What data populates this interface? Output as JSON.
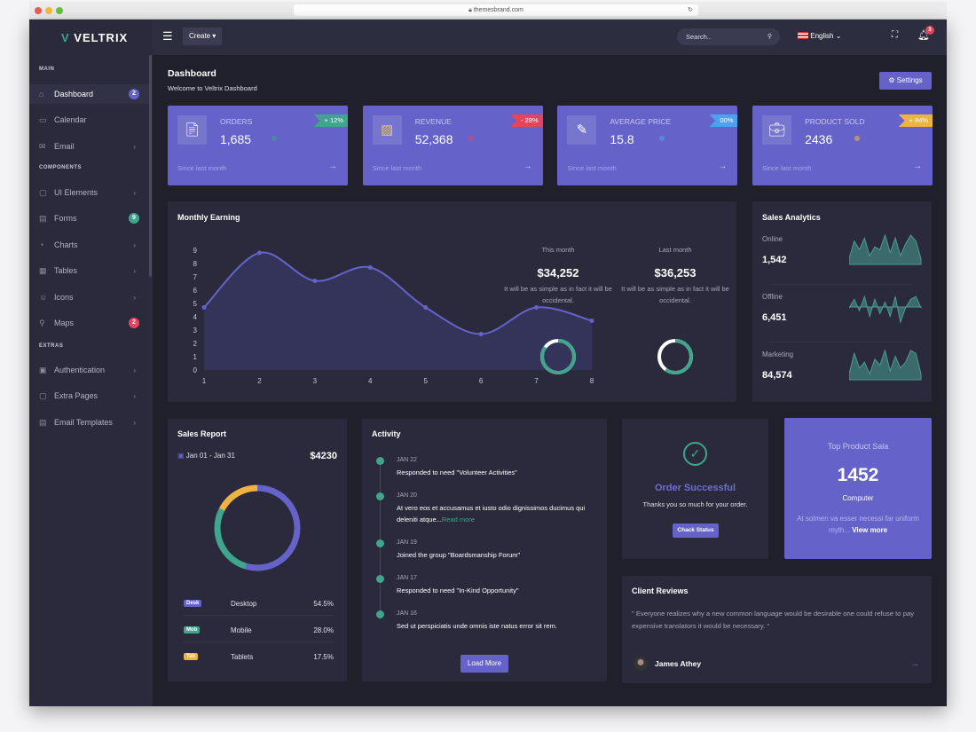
{
  "browser": {
    "url": "themesbrand.com"
  },
  "sidebar": {
    "logo": "VELTRIX",
    "sections": {
      "main": "MAIN",
      "components": "COMPONENTS",
      "extras": "EXTRAS"
    },
    "items": [
      {
        "label": "Dashboard",
        "icon": "home-icon",
        "badge": "2",
        "badge_color": "#6563c9",
        "active": true
      },
      {
        "label": "Calendar",
        "icon": "calendar-icon"
      },
      {
        "label": "Email",
        "icon": "mail-icon",
        "chevron": true
      },
      {
        "label": "UI Elements",
        "icon": "cube-icon",
        "chevron": true
      },
      {
        "label": "Forms",
        "icon": "form-icon",
        "badge": "9",
        "badge_color": "#3fa58c"
      },
      {
        "label": "Charts",
        "icon": "pie-chart-icon",
        "chevron": true
      },
      {
        "label": "Tables",
        "icon": "grid-icon",
        "chevron": true
      },
      {
        "label": "Icons",
        "icon": "smiley-icon",
        "chevron": true
      },
      {
        "label": "Maps",
        "icon": "map-pin-icon",
        "badge": "2",
        "badge_color": "#e3455f"
      },
      {
        "label": "Authentication",
        "icon": "lock-icon",
        "chevron": true
      },
      {
        "label": "Extra Pages",
        "icon": "briefcase-icon",
        "chevron": true
      },
      {
        "label": "Email Templates",
        "icon": "template-icon",
        "chevron": true
      }
    ]
  },
  "topbar": {
    "create": "Create",
    "search_placeholder": "Search..",
    "language": "English",
    "notifications": "3"
  },
  "page": {
    "title": "Dashboard",
    "subtitle": "Welcome to Veltrix Dashboard",
    "settings": "Settings"
  },
  "stats": [
    {
      "label": "ORDERS",
      "value": "1,685",
      "change": "+ 12%",
      "change_color": "#3fa58c",
      "since": "Since last month",
      "icon": "order-icon"
    },
    {
      "label": "REVENUE",
      "value": "52,368",
      "change": "- 28%",
      "change_color": "#e3455f",
      "since": "Since last month",
      "icon": "revenue-icon"
    },
    {
      "label": "AVERAGE PRICE",
      "value": "15.8",
      "change": "00%",
      "change_color": "#4aa3f0",
      "since": "Since last month",
      "icon": "pencil-icon"
    },
    {
      "label": "PRODUCT SOLD",
      "value": "2436",
      "change": "+ 84%",
      "change_color": "#f0b240",
      "since": "Since last month",
      "icon": "briefcase-icon"
    }
  ],
  "monthly": {
    "title": "Monthly Earning",
    "this_month": {
      "label": "This month",
      "value": "$34,252",
      "text": "It will be as simple as in fact it will be occidental.",
      "progress": 0.85
    },
    "last_month": {
      "label": "Last month",
      "value": "$36,253",
      "text": "It will be as simple as in fact it will be occidental.",
      "progress": 0.6
    }
  },
  "chart_data": [
    {
      "type": "area",
      "x": [
        1,
        2,
        3,
        4,
        5,
        6,
        7,
        8
      ],
      "values": [
        4.7,
        8.8,
        6.7,
        7.7,
        4.7,
        2.7,
        4.7,
        3.7
      ],
      "xlim": [
        1,
        8
      ],
      "ylim": [
        0,
        9
      ],
      "yticks": [
        0,
        1,
        2,
        3,
        4,
        5,
        6,
        7,
        8,
        9
      ],
      "color": "#6563c9",
      "grid": false
    },
    {
      "type": "pie",
      "donut": true,
      "categories": [
        "Desktop",
        "Mobile",
        "Tablets"
      ],
      "values": [
        54.5,
        28.0,
        17.5
      ],
      "colors": [
        "#6563c9",
        "#3fa58c",
        "#f0b240"
      ]
    }
  ],
  "analytics": {
    "title": "Sales Analytics",
    "items": [
      {
        "label": "Online",
        "value": "1,542",
        "spark": [
          2,
          8,
          5,
          9,
          3,
          6,
          5,
          10,
          4,
          9,
          3,
          7,
          10,
          8,
          2
        ]
      },
      {
        "label": "Offline",
        "value": "6,451",
        "spark": [
          5,
          8,
          4,
          9,
          2,
          8,
          3,
          7,
          2,
          9,
          0,
          5,
          8,
          9,
          5
        ]
      },
      {
        "label": "Marketing",
        "value": "84,574",
        "spark": [
          2,
          9,
          4,
          6,
          2,
          7,
          5,
          10,
          3,
          8,
          4,
          6,
          10,
          9,
          2
        ]
      }
    ]
  },
  "sales_report": {
    "title": "Sales Report",
    "range": "Jan 01 - Jan 31",
    "total": "$4230",
    "rows": [
      {
        "tag": "Desk",
        "name": "Desktop",
        "pct": "54.5%",
        "color": "#6563c9"
      },
      {
        "tag": "Mob",
        "name": "Mobile",
        "pct": "28.0%",
        "color": "#3fa58c"
      },
      {
        "tag": "Tab",
        "name": "Tablets",
        "pct": "17.5%",
        "color": "#f0b240"
      }
    ]
  },
  "activity": {
    "title": "Activity",
    "load_more": "Load More",
    "read_more": "Read more",
    "items": [
      {
        "date": "JAN 22",
        "text": "Responded to need \"Volunteer Activities\""
      },
      {
        "date": "JAN 20",
        "text": "At vero eos et accusamus et iusto odio dignissimos ducimus qui deleniti atque..."
      },
      {
        "date": "JAN 19",
        "text": "Joined the group \"Boardsmanship Forum\""
      },
      {
        "date": "JAN 17",
        "text": "Responded to need \"In-Kind Opportunity\""
      },
      {
        "date": "JAN 16",
        "text": "Sed ut perspiciatis unde omnis iste natus error sit rem."
      }
    ]
  },
  "order": {
    "title": "Order Successful",
    "text": "Thanks you so much for your order.",
    "button": "Chack Status"
  },
  "top_product": {
    "title": "Top Product Sala",
    "value": "1452",
    "name": "Computer",
    "text": "At solmen va esser necessi far uniform myth...",
    "link": "View more"
  },
  "reviews": {
    "title": "Client Reviews",
    "quote": "\" Everyone realizes why a new common language would be desirable one could refuse to pay expensive translators it would be necessary. \"",
    "author": "James Athey"
  }
}
